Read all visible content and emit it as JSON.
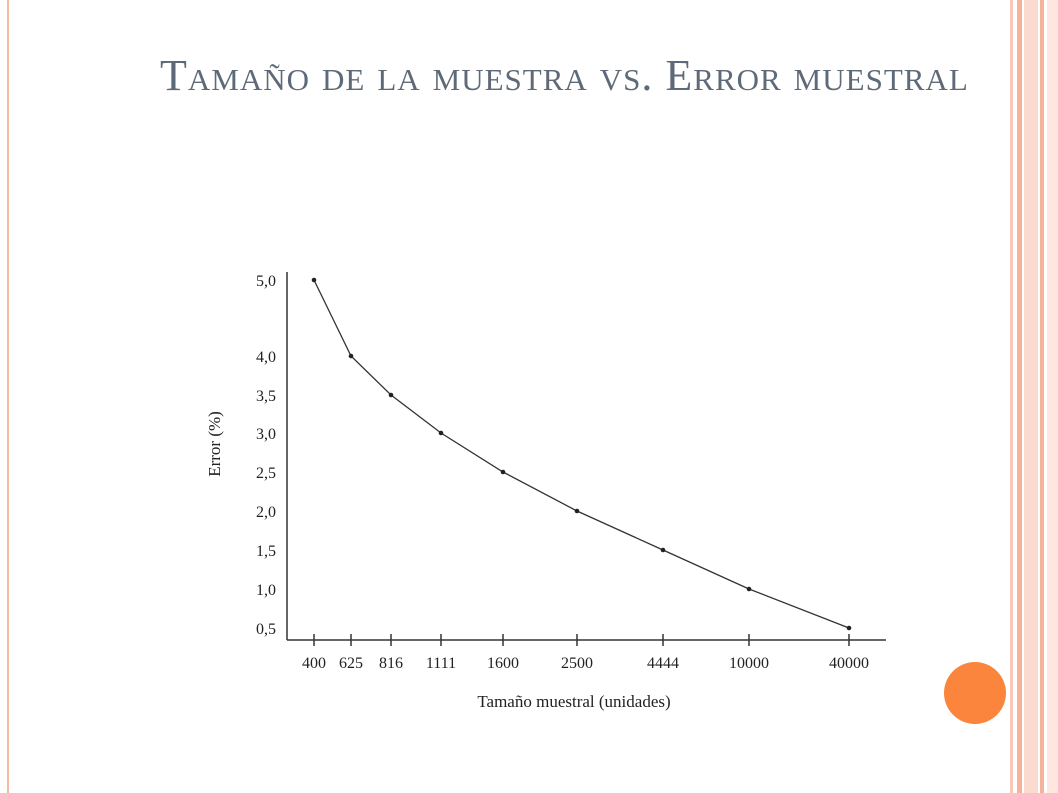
{
  "slide": {
    "title": "Tamaño de la muestra vs. Error muestral",
    "accent_color": "#fb853c",
    "border_color": "#f4b9a3"
  },
  "chart_data": {
    "type": "line",
    "title": "",
    "xlabel": "Tamaño muestral (unidades)",
    "ylabel": "Error (%)",
    "categories": [
      "400",
      "625",
      "816",
      "1111",
      "1600",
      "2500",
      "4444",
      "10000",
      "40000"
    ],
    "y_tick_labels": [
      "0,5",
      "1,0",
      "1,5",
      "2,0",
      "2,5",
      "3,0",
      "3,5",
      "4,0",
      "5,0"
    ],
    "series": [
      {
        "values": [
          5.0,
          4.0,
          3.5,
          3.0,
          2.5,
          2.0,
          1.5,
          1.0,
          0.5
        ]
      }
    ],
    "grid": false,
    "legend": "none"
  }
}
